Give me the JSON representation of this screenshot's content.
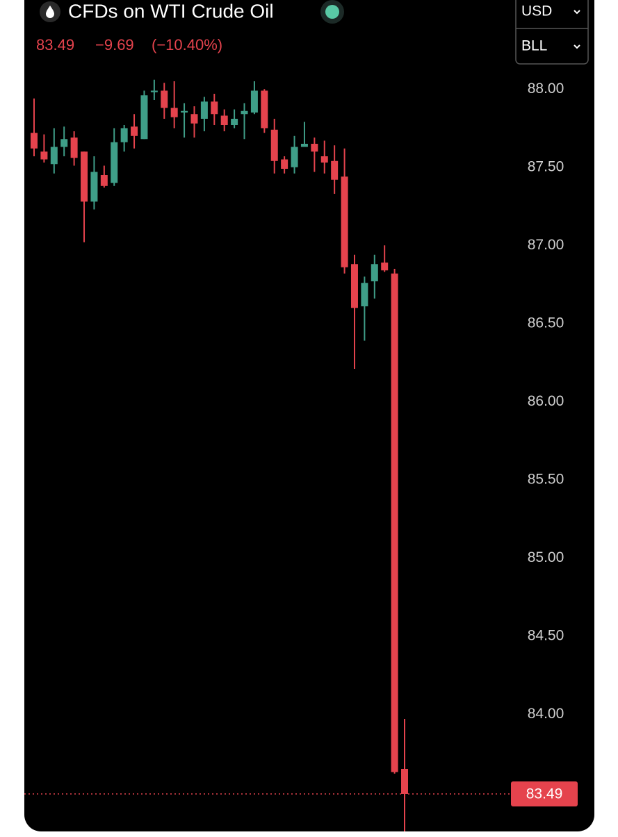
{
  "chart_data": {
    "type": "candlestick",
    "title": "CFDs on WTI Crude Oil",
    "currency": "USD",
    "unit": "BLL",
    "last_price": 83.49,
    "change": "−9.69",
    "change_pct": "(−10.40%)",
    "up_color": "#3f9e88",
    "down_color": "#e5434d",
    "open": [
      87.72,
      87.6,
      87.52,
      87.63,
      87.69,
      87.6,
      87.28,
      87.45,
      87.4,
      87.66,
      87.76,
      87.68,
      87.98,
      87.99,
      87.88,
      87.85,
      87.84,
      87.81,
      87.92,
      87.83,
      87.77,
      87.84,
      87.85,
      87.99,
      87.74,
      87.55,
      87.5,
      87.63,
      87.65,
      87.57,
      87.54,
      87.44,
      86.88,
      86.61,
      86.77,
      86.89,
      86.82,
      83.65
    ],
    "high": [
      87.94,
      87.71,
      87.75,
      87.76,
      87.73,
      87.6,
      87.57,
      87.51,
      87.75,
      87.77,
      87.84,
      87.99,
      88.06,
      88.04,
      88.05,
      87.91,
      87.89,
      87.95,
      87.97,
      87.87,
      87.87,
      87.91,
      88.05,
      88.0,
      87.81,
      87.57,
      87.7,
      87.79,
      87.69,
      87.67,
      87.64,
      87.62,
      86.94,
      86.8,
      86.94,
      87.0,
      86.85,
      83.97
    ],
    "low": [
      87.57,
      87.53,
      87.46,
      87.57,
      87.51,
      87.02,
      87.23,
      87.37,
      87.38,
      87.6,
      87.62,
      87.68,
      87.93,
      87.81,
      87.75,
      87.69,
      87.69,
      87.73,
      87.77,
      87.73,
      87.75,
      87.68,
      87.84,
      87.72,
      87.46,
      87.46,
      87.46,
      87.63,
      87.47,
      87.46,
      87.33,
      86.82,
      86.21,
      86.39,
      86.66,
      86.83,
      83.62,
      83.25
    ],
    "close": [
      87.62,
      87.55,
      87.63,
      87.68,
      87.56,
      87.28,
      87.47,
      87.38,
      87.66,
      87.75,
      87.7,
      87.96,
      87.99,
      87.88,
      87.82,
      87.86,
      87.78,
      87.92,
      87.84,
      87.77,
      87.81,
      87.86,
      87.99,
      87.75,
      87.54,
      87.49,
      87.63,
      87.65,
      87.6,
      87.53,
      87.42,
      86.86,
      86.6,
      86.76,
      86.88,
      86.84,
      83.63,
      83.49
    ],
    "ylim": [
      83.25,
      88.57
    ],
    "yticks": [
      {
        "value": 84,
        "label": "84.00"
      },
      {
        "value": 84.5,
        "label": "84.50"
      },
      {
        "value": 85,
        "label": "85.00"
      },
      {
        "value": 85.5,
        "label": "85.50"
      },
      {
        "value": 86,
        "label": "86.00"
      },
      {
        "value": 86.5,
        "label": "86.50"
      },
      {
        "value": 87,
        "label": "87.00"
      },
      {
        "value": 87.5,
        "label": "87.50"
      },
      {
        "value": 88,
        "label": "88.00"
      }
    ]
  }
}
